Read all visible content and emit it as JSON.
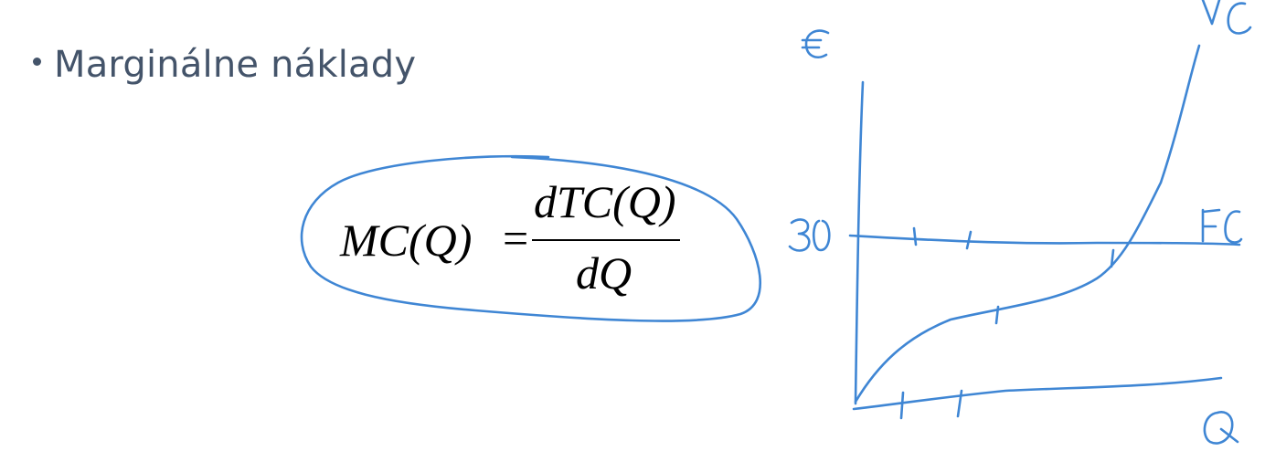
{
  "slide": {
    "bullet": "Marginálne náklady"
  },
  "formula": {
    "lhs": "MC(Q)",
    "equals": "=",
    "numerator": "dTC(Q)",
    "denominator": "dQ"
  },
  "handwriting": {
    "y_axis_symbol": "€",
    "x_axis_label": "Q",
    "y_tick_label": "30",
    "fc_label": "FC",
    "vc_label": "VC",
    "ink_color": "#3f86d4"
  },
  "colors": {
    "text": "#44546a",
    "ink": "#3f86d4",
    "formula": "#000000"
  }
}
